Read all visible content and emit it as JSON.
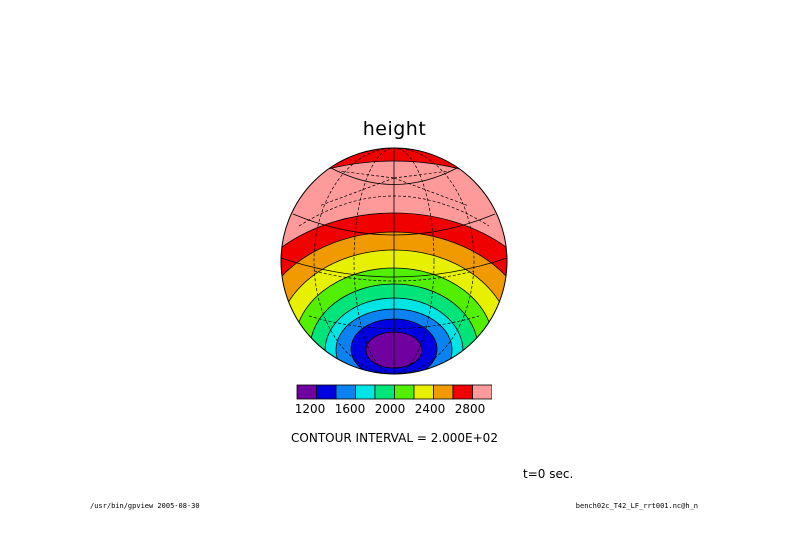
{
  "title": "height",
  "colorbar": {
    "colors": [
      "#7000a0",
      "#0000e0",
      "#0a82f0",
      "#00e4e4",
      "#00e47a",
      "#52f000",
      "#e6f000",
      "#f09a00",
      "#f00000",
      "#ff9a9a"
    ],
    "tick_labels": [
      "1200",
      "1600",
      "2000",
      "2400",
      "2800"
    ]
  },
  "contour_interval_text": "CONTOUR INTERVAL = 2.000E+02",
  "time_label": "t=0 sec.",
  "footer": {
    "left": "/usr/bin/gpview  2005-08-30",
    "right": "bench02c_T42_LF_rrt001.nc@h_n"
  }
}
